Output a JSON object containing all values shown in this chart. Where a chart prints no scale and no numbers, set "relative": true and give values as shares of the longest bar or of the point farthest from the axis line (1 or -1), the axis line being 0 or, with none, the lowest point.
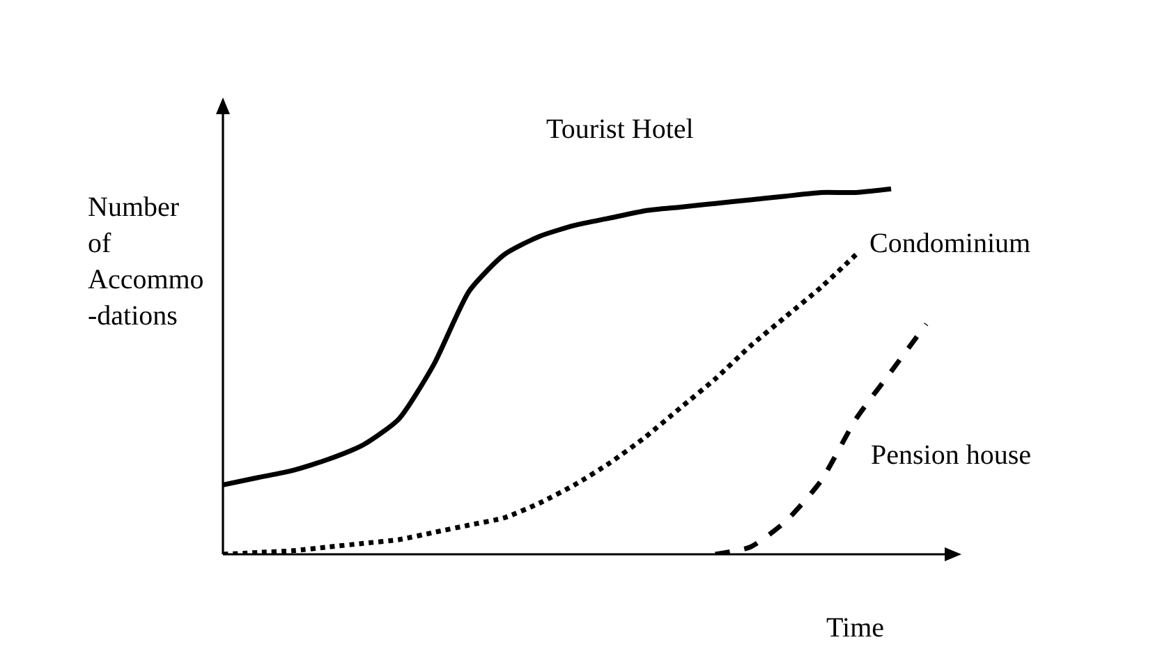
{
  "chart_data": {
    "type": "line",
    "relative": true,
    "xlabel": "Time",
    "ylabel": "Number\nof\nAccommo\n-dations",
    "categories": [
      null,
      null,
      null,
      null,
      null,
      null,
      null,
      null,
      null,
      null,
      null,
      null,
      null,
      null,
      null,
      null,
      null,
      null,
      null,
      null,
      null
    ],
    "grid": false,
    "legend": false,
    "marker": "none",
    "series": [
      {
        "name": "Tourist Hotel",
        "color": "#000000",
        "line_style": "solid",
        "values": [
          0.19,
          0.21,
          0.23,
          0.26,
          0.3,
          0.37,
          0.52,
          0.72,
          0.82,
          0.87,
          0.9,
          0.92,
          0.94,
          0.95,
          0.96,
          0.97,
          0.98,
          0.99,
          0.99,
          1.0,
          null
        ]
      },
      {
        "name": "Condominium",
        "color": "#000000",
        "line_style": "dotted",
        "values": [
          0,
          0.005,
          0.01,
          0.02,
          0.03,
          0.04,
          0.06,
          0.08,
          0.1,
          0.14,
          0.19,
          0.25,
          0.32,
          0.4,
          0.48,
          0.57,
          0.65,
          0.73,
          0.82,
          null,
          null
        ]
      },
      {
        "name": "Pension house",
        "color": "#000000",
        "line_style": "dashed",
        "values": [
          null,
          null,
          null,
          null,
          null,
          null,
          null,
          null,
          null,
          null,
          null,
          null,
          null,
          null,
          0,
          0.02,
          0.09,
          0.2,
          0.37,
          0.5,
          0.63
        ]
      }
    ]
  }
}
